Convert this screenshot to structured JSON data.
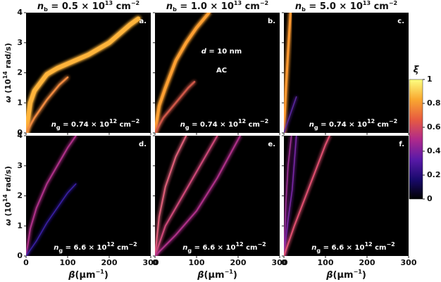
{
  "chart_data": [
    {
      "type": "line",
      "xlim": [
        0,
        300
      ],
      "ylim": [
        0,
        4
      ],
      "xticks": [
        0,
        100,
        200,
        300
      ],
      "yticks": [
        0,
        1,
        2,
        3,
        4
      ],
      "title": [
        {
          "text": "n",
          "style": "italic"
        },
        {
          "text": "b",
          "style": "sub"
        },
        {
          "text": " = 0.5 × 10",
          "style": "normal"
        },
        {
          "text": "13",
          "style": "sup"
        },
        {
          "text": " cm",
          "style": "normal"
        },
        {
          "text": "−2",
          "style": "sup"
        }
      ],
      "ylabel": [
        {
          "text": "ω",
          "style": "italic"
        },
        {
          "text": " (10",
          "style": "normal"
        },
        {
          "text": "14",
          "style": "sup"
        },
        {
          "text": " rad/s)",
          "style": "normal"
        }
      ],
      "letter": "a.",
      "note": [
        {
          "text": "n",
          "style": "italic"
        },
        {
          "text": "g",
          "style": "sub"
        },
        {
          "text": " = 0.74 × 10",
          "style": "normal"
        },
        {
          "text": "12",
          "style": "sup"
        },
        {
          "text": " cm",
          "style": "normal"
        },
        {
          "text": "−2",
          "style": "sup"
        }
      ],
      "series": [
        {
          "color": "#ffb43a",
          "width": 6,
          "x": [
            0,
            10,
            20,
            50,
            75,
            100,
            150,
            200,
            250,
            270
          ],
          "values": [
            0,
            1.0,
            1.4,
            1.95,
            2.15,
            2.3,
            2.6,
            3.0,
            3.6,
            3.8
          ]
        },
        {
          "color": "#f08a40",
          "width": 2.5,
          "x": [
            0,
            20,
            50,
            80,
            100
          ],
          "values": [
            0,
            0.5,
            1.1,
            1.6,
            1.85
          ]
        }
      ]
    },
    {
      "type": "line",
      "xlim": [
        0,
        300
      ],
      "ylim": [
        0,
        4
      ],
      "xticks": [
        0,
        100,
        200,
        300
      ],
      "yticks": [
        0,
        1,
        2,
        3,
        4
      ],
      "title": [
        {
          "text": "n",
          "style": "italic"
        },
        {
          "text": "b",
          "style": "sub"
        },
        {
          "text": " = 1.0 × 10",
          "style": "normal"
        },
        {
          "text": "13",
          "style": "sup"
        },
        {
          "text": " cm",
          "style": "normal"
        },
        {
          "text": "−2",
          "style": "sup"
        }
      ],
      "letter": "b.",
      "annotations": [
        [
          {
            "text": "d",
            "style": "italic"
          },
          {
            "text": " = 10 nm",
            "style": "normal"
          }
        ],
        [
          {
            "text": "AC",
            "style": "normal"
          }
        ]
      ],
      "note": [
        {
          "text": "n",
          "style": "italic"
        },
        {
          "text": "g",
          "style": "sub"
        },
        {
          "text": " = 0.74 × 10",
          "style": "normal"
        },
        {
          "text": "12",
          "style": "sup"
        },
        {
          "text": " cm",
          "style": "normal"
        },
        {
          "text": "−2",
          "style": "sup"
        }
      ],
      "series": [
        {
          "color": "#ffa030",
          "width": 4,
          "x": [
            0,
            10,
            25,
            50,
            75,
            100,
            130
          ],
          "values": [
            0,
            0.9,
            1.5,
            2.4,
            3.0,
            3.5,
            4
          ]
        },
        {
          "color": "#d05848",
          "width": 2.5,
          "x": [
            0,
            20,
            50,
            80,
            95
          ],
          "values": [
            0,
            0.5,
            1.0,
            1.5,
            1.7
          ]
        }
      ]
    },
    {
      "type": "line",
      "xlim": [
        0,
        300
      ],
      "ylim": [
        0,
        4
      ],
      "xticks": [
        0,
        100,
        200,
        300
      ],
      "yticks": [
        0,
        1,
        2,
        3,
        4
      ],
      "title": [
        {
          "text": "n",
          "style": "italic"
        },
        {
          "text": "b",
          "style": "sub"
        },
        {
          "text": " = 5.0 × 10",
          "style": "normal"
        },
        {
          "text": "13",
          "style": "sup"
        },
        {
          "text": " cm",
          "style": "normal"
        },
        {
          "text": "−2",
          "style": "sup"
        }
      ],
      "letter": "c.",
      "note": [
        {
          "text": "n",
          "style": "italic"
        },
        {
          "text": "g",
          "style": "sub"
        },
        {
          "text": " = 0.74 × 10",
          "style": "normal"
        },
        {
          "text": "12",
          "style": "sup"
        },
        {
          "text": " cm",
          "style": "normal"
        },
        {
          "text": "−2",
          "style": "sup"
        }
      ],
      "series": [
        {
          "color": "#ff9a30",
          "width": 3,
          "x": [
            0,
            5,
            10,
            16
          ],
          "values": [
            0,
            1.5,
            2.7,
            4
          ]
        },
        {
          "color": "#5a2aa0",
          "width": 1.5,
          "x": [
            0,
            10,
            20,
            30
          ],
          "values": [
            0,
            0.4,
            0.8,
            1.2
          ]
        }
      ]
    },
    {
      "type": "line",
      "xlim": [
        0,
        300
      ],
      "ylim": [
        0,
        4
      ],
      "xticks": [
        0,
        100,
        200,
        300
      ],
      "yticks": [
        0,
        1,
        2,
        3,
        4
      ],
      "ylabel": [
        {
          "text": "ω",
          "style": "italic"
        },
        {
          "text": " (10",
          "style": "normal"
        },
        {
          "text": "14",
          "style": "sup"
        },
        {
          "text": " rad/s)",
          "style": "normal"
        }
      ],
      "xlabel": [
        {
          "text": "β",
          "style": "italic"
        },
        {
          "text": "(μm",
          "style": "normal"
        },
        {
          "text": "−1",
          "style": "sup"
        },
        {
          "text": ")",
          "style": "normal"
        }
      ],
      "letter": "d.",
      "note": [
        {
          "text": "n",
          "style": "italic"
        },
        {
          "text": "g",
          "style": "sub"
        },
        {
          "text": " = 6.6 × 10",
          "style": "normal"
        },
        {
          "text": "12",
          "style": "sup"
        },
        {
          "text": " cm",
          "style": "normal"
        },
        {
          "text": "−2",
          "style": "sup"
        }
      ],
      "series": [
        {
          "color": "#b0308a",
          "width": 2,
          "x": [
            0,
            10,
            25,
            50,
            75,
            100,
            120
          ],
          "values": [
            0,
            0.9,
            1.6,
            2.4,
            3.0,
            3.6,
            4
          ]
        },
        {
          "color": "#3a20a8",
          "width": 1.5,
          "x": [
            0,
            25,
            50,
            75,
            100,
            120
          ],
          "values": [
            0,
            0.5,
            1.1,
            1.6,
            2.1,
            2.4
          ]
        }
      ]
    },
    {
      "type": "line",
      "xlim": [
        0,
        300
      ],
      "ylim": [
        0,
        4
      ],
      "xticks": [
        0,
        100,
        200,
        300
      ],
      "yticks": [
        0,
        1,
        2,
        3,
        4
      ],
      "xlabel": [
        {
          "text": "β",
          "style": "italic"
        },
        {
          "text": "(μm",
          "style": "normal"
        },
        {
          "text": "−1",
          "style": "sup"
        },
        {
          "text": ")",
          "style": "normal"
        }
      ],
      "letter": "e.",
      "note": [
        {
          "text": "n",
          "style": "italic"
        },
        {
          "text": "g",
          "style": "sub"
        },
        {
          "text": " = 6.6 × 10",
          "style": "normal"
        },
        {
          "text": "12",
          "style": "sup"
        },
        {
          "text": " cm",
          "style": "normal"
        },
        {
          "text": "−2",
          "style": "sup"
        }
      ],
      "series": [
        {
          "color": "#e0607a",
          "width": 2,
          "x": [
            0,
            10,
            25,
            50,
            75
          ],
          "values": [
            0,
            1.3,
            2.3,
            3.3,
            4
          ]
        },
        {
          "color": "#d04a7a",
          "width": 2,
          "x": [
            0,
            25,
            50,
            100,
            150
          ],
          "values": [
            0,
            1.0,
            1.6,
            2.8,
            4
          ]
        },
        {
          "color": "#b0308a",
          "width": 2,
          "x": [
            0,
            50,
            100,
            150,
            205
          ],
          "values": [
            0,
            0.7,
            1.5,
            2.6,
            4
          ]
        }
      ]
    },
    {
      "type": "line",
      "xlim": [
        0,
        300
      ],
      "ylim": [
        0,
        4
      ],
      "xticks": [
        0,
        100,
        200,
        300
      ],
      "yticks": [
        0,
        1,
        2,
        3,
        4
      ],
      "xlabel": [
        {
          "text": "β",
          "style": "italic"
        },
        {
          "text": "(μm",
          "style": "normal"
        },
        {
          "text": "−1",
          "style": "sup"
        },
        {
          "text": ")",
          "style": "normal"
        }
      ],
      "letter": "f.",
      "note": [
        {
          "text": "n",
          "style": "italic"
        },
        {
          "text": "g",
          "style": "sub"
        },
        {
          "text": " = 6.6 × 10",
          "style": "normal"
        },
        {
          "text": "12",
          "style": "sup"
        },
        {
          "text": " cm",
          "style": "normal"
        },
        {
          "text": "−2",
          "style": "sup"
        }
      ],
      "series": [
        {
          "color": "#a0309a",
          "width": 1.5,
          "x": [
            0,
            5,
            10,
            18
          ],
          "values": [
            0,
            1.8,
            3.0,
            4
          ]
        },
        {
          "color": "#7a2aa8",
          "width": 1.5,
          "x": [
            0,
            10,
            20,
            30
          ],
          "values": [
            0,
            1.2,
            2.2,
            4
          ]
        },
        {
          "color": "#e05070",
          "width": 2,
          "x": [
            0,
            25,
            50,
            75,
            100,
            110
          ],
          "values": [
            0,
            1.0,
            1.9,
            2.8,
            3.7,
            4
          ]
        }
      ]
    },
    {
      "type": "colorbar",
      "label": [
        {
          "text": "ξ",
          "style": "italic"
        }
      ],
      "lim": [
        0,
        1
      ],
      "ticks": [
        0,
        0.2,
        0.4,
        0.6,
        0.8,
        1
      ],
      "colors": [
        "#000000",
        "#1a0a6e",
        "#5a1aa8",
        "#b02a8a",
        "#e85c40",
        "#f9a830",
        "#fcff80"
      ]
    }
  ]
}
